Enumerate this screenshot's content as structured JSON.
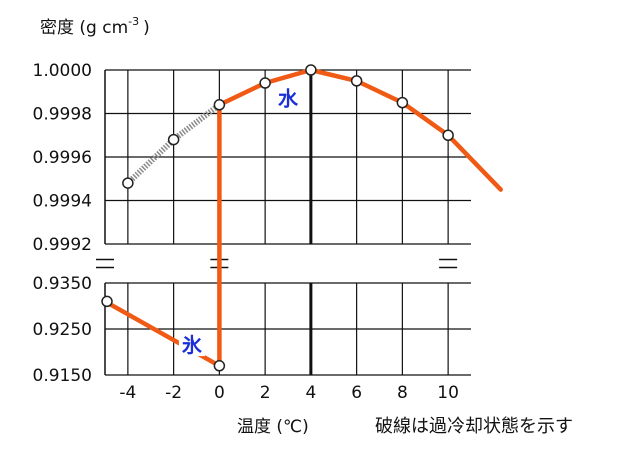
{
  "chart_data": {
    "type": "line",
    "ylabel": "密度 (g cm",
    "ylabel_sup": "-3",
    "ylabel_close": ")",
    "xlabel": "温度 (℃)",
    "note": "破線は過冷却状態を示す",
    "xlim": [
      -5,
      11
    ],
    "x_ticks": [
      -4,
      -2,
      0,
      2,
      4,
      6,
      8,
      10
    ],
    "x_tick_labels": [
      "-4",
      "-2",
      "0",
      "2",
      "4",
      "6",
      "8",
      "10"
    ],
    "y_upper_ticks": [
      "1.0000",
      "0.9998",
      "0.9996",
      "0.9994",
      "0.9992"
    ],
    "y_upper_values": [
      1.0,
      0.9998,
      0.9996,
      0.9994,
      0.9992
    ],
    "y_lower_ticks": [
      "0.9350",
      "0.9250",
      "0.9150"
    ],
    "y_lower_values": [
      0.935,
      0.925,
      0.915
    ],
    "axis_break": true,
    "grid": true,
    "series": [
      {
        "name": "水",
        "color": "#f05a14",
        "panel": "upper",
        "x": [
          0,
          2,
          4,
          6,
          8,
          10,
          12.3
        ],
        "y": [
          0.99984,
          0.99994,
          1.0,
          0.99995,
          0.99985,
          0.9997,
          0.99945
        ],
        "markers": [
          0,
          2,
          4,
          6,
          8,
          10
        ]
      },
      {
        "name": "",
        "style": "dashed",
        "color": "#8a8a8a",
        "panel": "upper",
        "x": [
          -4,
          -2,
          0
        ],
        "y": [
          0.99948,
          0.99968,
          0.99984
        ],
        "markers": [
          -4,
          -2
        ]
      },
      {
        "name": "氷",
        "color": "#f05a14",
        "panel": "lower",
        "x": [
          -5,
          0
        ],
        "y": [
          0.931,
          0.917
        ],
        "markers": [
          -5,
          0
        ]
      },
      {
        "name": "",
        "color": "#f05a14",
        "panel": "transition",
        "x": [
          0,
          0
        ],
        "y": [
          0.917,
          0.99984
        ]
      }
    ],
    "annotations": [
      {
        "text": "水",
        "color": "#1a2fd6",
        "x": 3.0,
        "y": 0.99987,
        "panel": "upper"
      },
      {
        "text": "氷",
        "color": "#1a2fd6",
        "x": -1.2,
        "y": 0.9215,
        "panel": "lower"
      }
    ]
  }
}
